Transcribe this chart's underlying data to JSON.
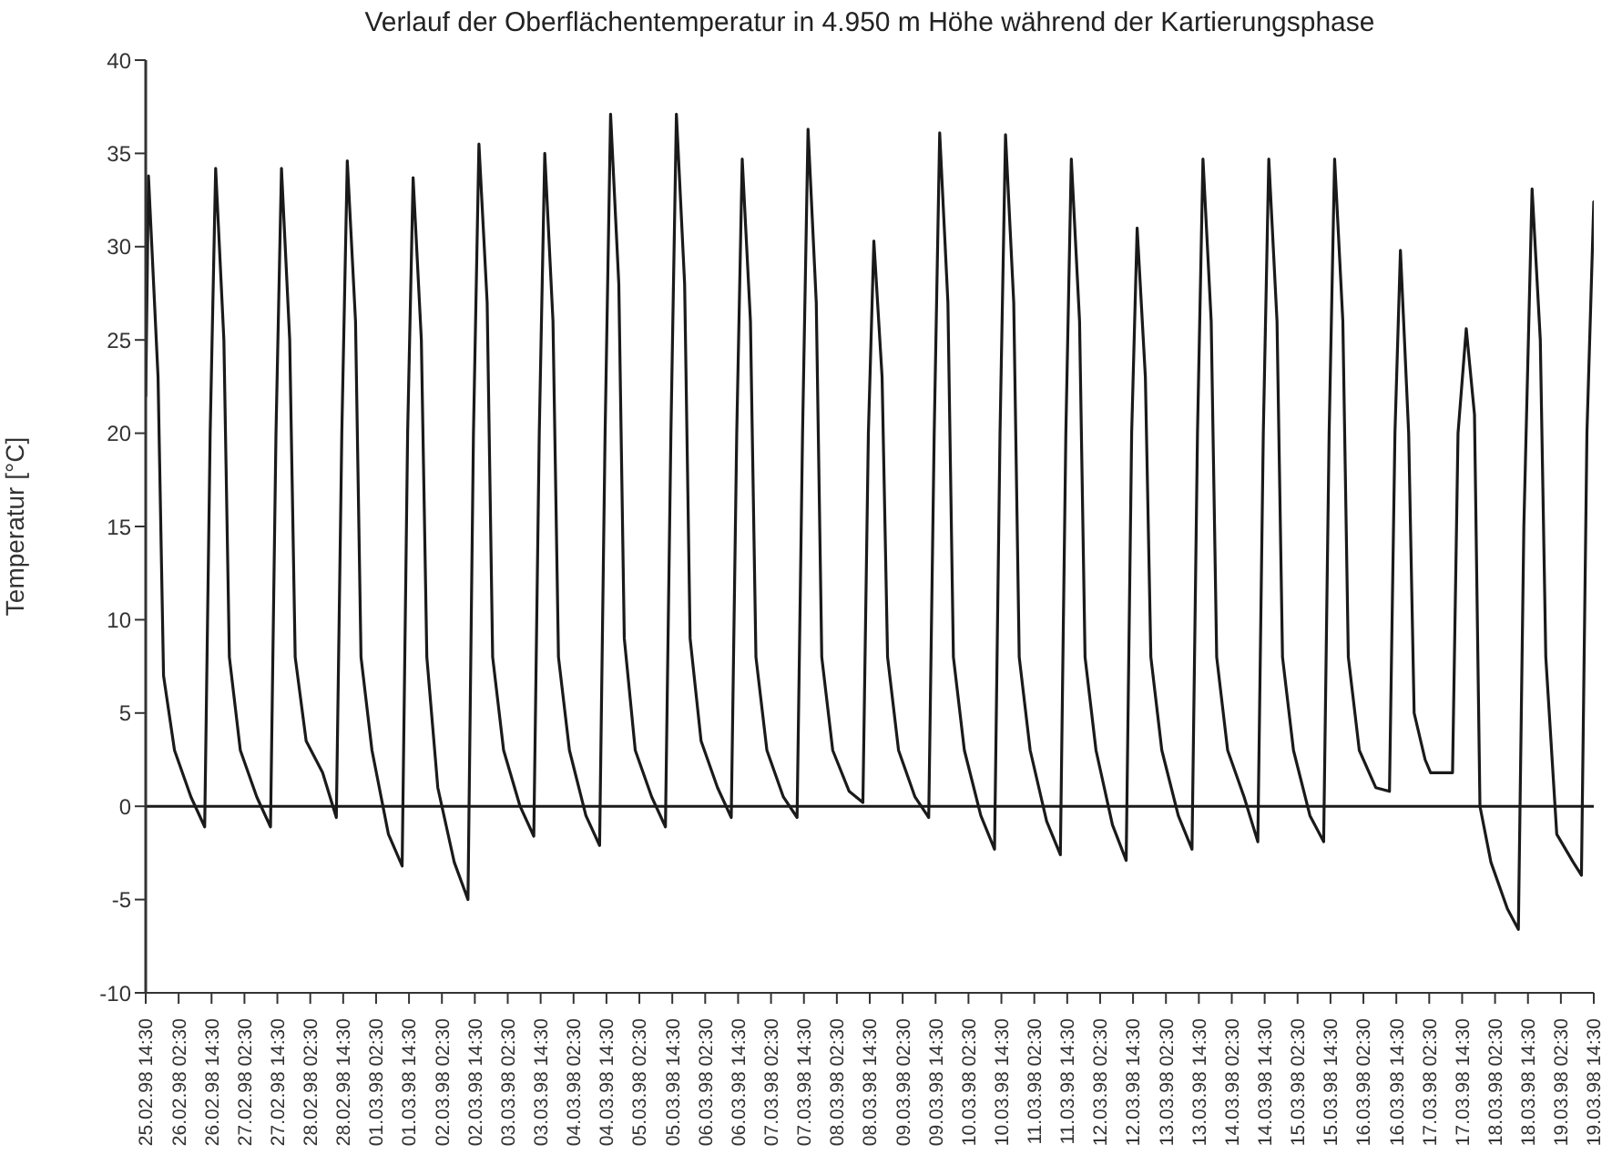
{
  "chart_data": {
    "type": "line",
    "title": "Verlauf der Oberflächentemperatur in 4.950 m Höhe während der Kartierungsphase",
    "ylabel": "Temperatur [°C]",
    "color": "#1a1a1a",
    "marker": "none",
    "line_style": "solid",
    "grid": false,
    "legend": false,
    "ylim": [
      -10,
      40
    ],
    "yticks": [
      -10,
      -5,
      0,
      5,
      10,
      15,
      20,
      25,
      30,
      35,
      40
    ],
    "xlim": [
      "1998-02-25T14:30",
      "1998-03-19T14:30"
    ],
    "xticks": [
      {
        "value": "1998-02-25T14:30",
        "label": "25.02.98 14:30"
      },
      {
        "value": "1998-02-26T02:30",
        "label": "26.02.98 02:30"
      },
      {
        "value": "1998-02-26T14:30",
        "label": "26.02.98 14:30"
      },
      {
        "value": "1998-02-27T02:30",
        "label": "27.02.98 02:30"
      },
      {
        "value": "1998-02-27T14:30",
        "label": "27.02.98 14:30"
      },
      {
        "value": "1998-02-28T02:30",
        "label": "28.02.98 02:30"
      },
      {
        "value": "1998-02-28T14:30",
        "label": "28.02.98 14:30"
      },
      {
        "value": "1998-03-01T02:30",
        "label": "01.03.98 02:30"
      },
      {
        "value": "1998-03-01T14:30",
        "label": "01.03.98 14:30"
      },
      {
        "value": "1998-03-02T02:30",
        "label": "02.03.98 02:30"
      },
      {
        "value": "1998-03-02T14:30",
        "label": "02.03.98 14:30"
      },
      {
        "value": "1998-03-03T02:30",
        "label": "03.03.98 02:30"
      },
      {
        "value": "1998-03-03T14:30",
        "label": "03.03.98 14:30"
      },
      {
        "value": "1998-03-04T02:30",
        "label": "04.03.98 02:30"
      },
      {
        "value": "1998-03-04T14:30",
        "label": "04.03.98 14:30"
      },
      {
        "value": "1998-03-05T02:30",
        "label": "05.03.98 02:30"
      },
      {
        "value": "1998-03-05T14:30",
        "label": "05.03.98 14:30"
      },
      {
        "value": "1998-03-06T02:30",
        "label": "06.03.98 02:30"
      },
      {
        "value": "1998-03-06T14:30",
        "label": "06.03.98 14:30"
      },
      {
        "value": "1998-03-07T02:30",
        "label": "07.03.98 02:30"
      },
      {
        "value": "1998-03-07T14:30",
        "label": "07.03.98 14:30"
      },
      {
        "value": "1998-03-08T02:30",
        "label": "08.03.98 02:30"
      },
      {
        "value": "1998-03-08T14:30",
        "label": "08.03.98 14:30"
      },
      {
        "value": "1998-03-09T02:30",
        "label": "09.03.98 02:30"
      },
      {
        "value": "1998-03-09T14:30",
        "label": "09.03.98 14:30"
      },
      {
        "value": "1998-03-10T02:30",
        "label": "10.03.98 02:30"
      },
      {
        "value": "1998-03-10T14:30",
        "label": "10.03.98 14:30"
      },
      {
        "value": "1998-03-11T02:30",
        "label": "11.03.98 02:30"
      },
      {
        "value": "1998-03-11T14:30",
        "label": "11.03.98 14:30"
      },
      {
        "value": "1998-03-12T02:30",
        "label": "12.03.98 02:30"
      },
      {
        "value": "1998-03-12T14:30",
        "label": "12.03.98 14:30"
      },
      {
        "value": "1998-03-13T02:30",
        "label": "13.03.98 02:30"
      },
      {
        "value": "1998-03-13T14:30",
        "label": "13.03.98 14:30"
      },
      {
        "value": "1998-03-14T02:30",
        "label": "14.03.98 02:30"
      },
      {
        "value": "1998-03-14T14:30",
        "label": "14.03.98 14:30"
      },
      {
        "value": "1998-03-15T02:30",
        "label": "15.03.98 02:30"
      },
      {
        "value": "1998-03-15T14:30",
        "label": "15.03.98 14:30"
      },
      {
        "value": "1998-03-16T02:30",
        "label": "16.03.98 02:30"
      },
      {
        "value": "1998-03-16T14:30",
        "label": "16.03.98 14:30"
      },
      {
        "value": "1998-03-17T02:30",
        "label": "17.03.98 02:30"
      },
      {
        "value": "1998-03-17T14:30",
        "label": "17.03.98 14:30"
      },
      {
        "value": "1998-03-18T02:30",
        "label": "18.03.98 02:30"
      },
      {
        "value": "1998-03-18T14:30",
        "label": "18.03.98 14:30"
      },
      {
        "value": "1998-03-19T02:30",
        "label": "19.03.98 02:30"
      },
      {
        "value": "1998-03-19T14:30",
        "label": "19.03.98 14:30"
      }
    ],
    "ref_lines": [
      {
        "axis": "y",
        "value": 0,
        "color": "#1a1a1a"
      }
    ],
    "x": [
      "1998-02-25T14:30",
      "1998-02-25T15:30",
      "1998-02-25T19:00",
      "1998-02-25T21:00",
      "1998-02-26T01:00",
      "1998-02-26T07:00",
      "1998-02-26T12:00",
      "1998-02-26T14:00",
      "1998-02-26T16:00",
      "1998-02-26T19:00",
      "1998-02-26T21:00",
      "1998-02-27T01:00",
      "1998-02-27T07:00",
      "1998-02-27T12:00",
      "1998-02-27T14:00",
      "1998-02-27T16:00",
      "1998-02-27T19:00",
      "1998-02-27T21:00",
      "1998-02-28T01:00",
      "1998-02-28T07:00",
      "1998-02-28T12:00",
      "1998-02-28T14:00",
      "1998-02-28T16:00",
      "1998-02-28T19:00",
      "1998-02-28T21:00",
      "1998-03-01T01:00",
      "1998-03-01T07:00",
      "1998-03-01T12:00",
      "1998-03-01T14:00",
      "1998-03-01T16:00",
      "1998-03-01T19:00",
      "1998-03-01T21:00",
      "1998-03-02T01:00",
      "1998-03-02T07:00",
      "1998-03-02T12:00",
      "1998-03-02T14:00",
      "1998-03-02T16:00",
      "1998-03-02T19:00",
      "1998-03-02T21:00",
      "1998-03-03T01:00",
      "1998-03-03T07:00",
      "1998-03-03T12:00",
      "1998-03-03T14:00",
      "1998-03-03T16:00",
      "1998-03-03T19:00",
      "1998-03-03T21:00",
      "1998-03-04T01:00",
      "1998-03-04T07:00",
      "1998-03-04T12:00",
      "1998-03-04T14:00",
      "1998-03-04T16:00",
      "1998-03-04T19:00",
      "1998-03-04T21:00",
      "1998-03-05T01:00",
      "1998-03-05T07:00",
      "1998-03-05T12:00",
      "1998-03-05T14:00",
      "1998-03-05T16:00",
      "1998-03-05T19:00",
      "1998-03-05T21:00",
      "1998-03-06T01:00",
      "1998-03-06T07:00",
      "1998-03-06T12:00",
      "1998-03-06T14:00",
      "1998-03-06T16:00",
      "1998-03-06T19:00",
      "1998-03-06T21:00",
      "1998-03-07T01:00",
      "1998-03-07T07:00",
      "1998-03-07T12:00",
      "1998-03-07T14:00",
      "1998-03-07T16:00",
      "1998-03-07T19:00",
      "1998-03-07T21:00",
      "1998-03-08T01:00",
      "1998-03-08T07:00",
      "1998-03-08T12:00",
      "1998-03-08T14:00",
      "1998-03-08T16:00",
      "1998-03-08T19:00",
      "1998-03-08T21:00",
      "1998-03-09T01:00",
      "1998-03-09T07:00",
      "1998-03-09T12:00",
      "1998-03-09T14:00",
      "1998-03-09T16:00",
      "1998-03-09T19:00",
      "1998-03-09T21:00",
      "1998-03-10T01:00",
      "1998-03-10T07:00",
      "1998-03-10T12:00",
      "1998-03-10T14:00",
      "1998-03-10T16:00",
      "1998-03-10T19:00",
      "1998-03-10T21:00",
      "1998-03-11T01:00",
      "1998-03-11T07:00",
      "1998-03-11T12:00",
      "1998-03-11T14:00",
      "1998-03-11T16:00",
      "1998-03-11T19:00",
      "1998-03-11T21:00",
      "1998-03-12T01:00",
      "1998-03-12T07:00",
      "1998-03-12T12:00",
      "1998-03-12T14:00",
      "1998-03-12T16:00",
      "1998-03-12T19:00",
      "1998-03-12T21:00",
      "1998-03-13T01:00",
      "1998-03-13T07:00",
      "1998-03-13T12:00",
      "1998-03-13T14:00",
      "1998-03-13T16:00",
      "1998-03-13T19:00",
      "1998-03-13T21:00",
      "1998-03-14T01:00",
      "1998-03-14T07:00",
      "1998-03-14T12:00",
      "1998-03-14T14:00",
      "1998-03-14T16:00",
      "1998-03-14T19:00",
      "1998-03-14T21:00",
      "1998-03-15T01:00",
      "1998-03-15T07:00",
      "1998-03-15T12:00",
      "1998-03-15T14:00",
      "1998-03-15T16:00",
      "1998-03-15T19:00",
      "1998-03-15T21:00",
      "1998-03-16T01:00",
      "1998-03-16T07:00",
      "1998-03-16T12:00",
      "1998-03-16T14:00",
      "1998-03-16T16:00",
      "1998-03-16T19:00",
      "1998-03-16T21:00",
      "1998-03-17T01:00",
      "1998-03-17T03:00",
      "1998-03-17T11:00",
      "1998-03-17T13:00",
      "1998-03-17T16:00",
      "1998-03-17T19:00",
      "1998-03-17T21:00",
      "1998-03-18T01:00",
      "1998-03-18T07:00",
      "1998-03-18T11:00",
      "1998-03-18T13:00",
      "1998-03-18T16:00",
      "1998-03-18T19:00",
      "1998-03-18T21:00",
      "1998-03-19T01:00",
      "1998-03-19T07:00",
      "1998-03-19T10:00",
      "1998-03-19T12:00",
      "1998-03-19T14:30"
    ],
    "values": [
      22,
      33.8,
      23,
      7,
      3,
      0.5,
      -1.1,
      20,
      34.2,
      25,
      8,
      3,
      0.5,
      -1.1,
      20,
      34.2,
      25,
      8,
      3.5,
      1.8,
      -0.6,
      20,
      34.6,
      26,
      8,
      3,
      -1.5,
      -3.2,
      20,
      33.7,
      25,
      8,
      1,
      -3,
      -5.0,
      20,
      35.5,
      27,
      8,
      3,
      0,
      -1.6,
      20,
      35.0,
      26,
      8,
      3,
      -0.5,
      -2.1,
      20,
      37.1,
      28,
      9,
      3,
      0.5,
      -1.1,
      20,
      37.1,
      28,
      9,
      3.5,
      1,
      -0.6,
      20,
      34.7,
      26,
      8,
      3,
      0.5,
      -0.6,
      20,
      36.3,
      27,
      8,
      3,
      0.8,
      0.2,
      20,
      30.3,
      23,
      8,
      3,
      0.5,
      -0.6,
      20,
      36.1,
      27,
      8,
      3,
      -0.5,
      -2.3,
      20,
      36.0,
      27,
      8,
      3,
      -0.8,
      -2.6,
      20,
      34.7,
      26,
      8,
      3,
      -1,
      -2.9,
      20,
      31.0,
      23,
      8,
      3,
      -0.5,
      -2.3,
      20,
      34.7,
      26,
      8,
      3,
      0.5,
      -1.9,
      20,
      34.7,
      26,
      8,
      3,
      -0.5,
      -1.9,
      20,
      34.7,
      26,
      8,
      3,
      1,
      0.8,
      20,
      29.8,
      20,
      5,
      2.5,
      1.8,
      1.8,
      20,
      25.6,
      21,
      0,
      -3,
      -5.5,
      -6.6,
      15,
      33.1,
      25,
      8,
      -1.5,
      -3,
      -3.7,
      20,
      32.4
    ]
  }
}
